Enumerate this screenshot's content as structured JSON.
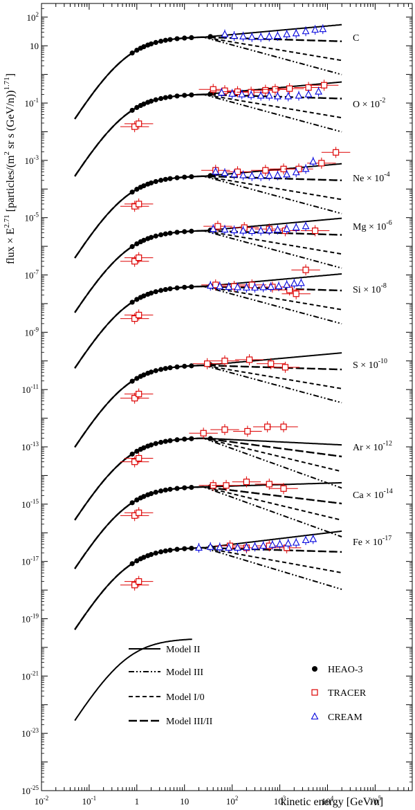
{
  "chart_data": {
    "type": "scatter",
    "title": "",
    "xlabel": "kinetic energy [GeV/n]",
    "ylabel_parts": [
      "flux × E",
      "2.71",
      " [particles/(m",
      "2",
      " sr s (GeV/n))",
      "1.71",
      "]"
    ],
    "x_scale": "log",
    "y_scale": "log",
    "xlim": [
      0.01,
      600000
    ],
    "ylim": [
      1e-25,
      300
    ],
    "x_ticks": [
      {
        "base": "10",
        "exp": "-2"
      },
      {
        "base": "10",
        "exp": "-1"
      },
      {
        "base": "1",
        "exp": ""
      },
      {
        "base": "10",
        "exp": ""
      },
      {
        "base": "10",
        "exp": "2"
      },
      {
        "base": "10",
        "exp": "3"
      },
      {
        "base": "10",
        "exp": "4"
      },
      {
        "base": "10",
        "exp": "5"
      }
    ],
    "y_ticks": [
      {
        "base": "10",
        "exp": "2"
      },
      {
        "base": "10",
        "exp": ""
      },
      {
        "base": "10",
        "exp": "-1"
      },
      {
        "base": "10",
        "exp": "-3"
      },
      {
        "base": "10",
        "exp": "-5"
      },
      {
        "base": "10",
        "exp": "-7"
      },
      {
        "base": "10",
        "exp": "-9"
      },
      {
        "base": "10",
        "exp": "-11"
      },
      {
        "base": "10",
        "exp": "-13"
      },
      {
        "base": "10",
        "exp": "-15"
      },
      {
        "base": "10",
        "exp": "-17"
      },
      {
        "base": "10",
        "exp": "-19"
      },
      {
        "base": "10",
        "exp": "-21"
      },
      {
        "base": "10",
        "exp": "-23"
      },
      {
        "base": "10",
        "exp": "-25"
      }
    ],
    "elements": [
      {
        "label": "C",
        "scale_exp": "",
        "peak": 20,
        "trend": {
          "II": 0.15,
          "III": -0.45,
          "I0": -0.28,
          "IIIII": -0.05
        },
        "tracer": [],
        "cream": [
          [
            70,
            25
          ],
          [
            110,
            22
          ],
          [
            170,
            21
          ],
          [
            260,
            20
          ],
          [
            400,
            20
          ],
          [
            600,
            21
          ],
          [
            900,
            22
          ],
          [
            1400,
            25
          ],
          [
            2200,
            27
          ],
          [
            3500,
            32
          ],
          [
            5500,
            36
          ],
          [
            8000,
            38
          ]
        ]
      },
      {
        "label": "O",
        "scale_exp": "-2",
        "peak": 0.2,
        "trend": {
          "II": 0.15,
          "III": -0.45,
          "I0": -0.28,
          "IIIII": -0.05
        },
        "tracer": [
          [
            0.9,
            0.015
          ],
          [
            1.1,
            0.019
          ],
          [
            40,
            0.3
          ],
          [
            70,
            0.27
          ],
          [
            130,
            0.25
          ],
          [
            250,
            0.24
          ],
          [
            500,
            0.28
          ],
          [
            800,
            0.3
          ],
          [
            1600,
            0.32
          ],
          [
            4000,
            0.35
          ],
          [
            8500,
            0.42
          ]
        ],
        "cream": [
          [
            60,
            0.23
          ],
          [
            100,
            0.21
          ],
          [
            160,
            0.2
          ],
          [
            250,
            0.19
          ],
          [
            400,
            0.18
          ],
          [
            600,
            0.18
          ],
          [
            900,
            0.17
          ],
          [
            1500,
            0.17
          ],
          [
            2500,
            0.18
          ],
          [
            4000,
            0.2
          ],
          [
            6500,
            0.25
          ]
        ]
      },
      {
        "label": "Ne",
        "scale_exp": "-4",
        "peak": 0.00028,
        "trend": {
          "II": 0.15,
          "III": -0.45,
          "I0": -0.28,
          "IIIII": -0.05
        },
        "tracer": [
          [
            0.9,
            2.5e-05
          ],
          [
            1.1,
            3e-05
          ],
          [
            45,
            0.00045
          ],
          [
            130,
            0.0004
          ],
          [
            500,
            0.00045
          ],
          [
            1200,
            0.0005
          ],
          [
            2500,
            0.0005
          ],
          [
            7500,
            0.0008
          ],
          [
            15000,
            0.0019
          ]
        ],
        "cream": [
          [
            45,
            0.0004
          ],
          [
            70,
            0.00036
          ],
          [
            110,
            0.00032
          ],
          [
            170,
            0.0003
          ],
          [
            260,
            0.00028
          ],
          [
            400,
            0.00028
          ],
          [
            600,
            0.00029
          ],
          [
            900,
            0.0003
          ],
          [
            1400,
            0.00032
          ],
          [
            2200,
            0.00038
          ],
          [
            3500,
            0.0005
          ],
          [
            5000,
            0.0009
          ]
        ]
      },
      {
        "label": "Mg",
        "scale_exp": "-6",
        "peak": 3.5e-06,
        "trend": {
          "II": 0.15,
          "III": -0.45,
          "I0": -0.28,
          "IIIII": -0.05
        },
        "tracer": [
          [
            0.9,
            3e-07
          ],
          [
            1.1,
            4e-07
          ],
          [
            50,
            5e-06
          ],
          [
            180,
            4.5e-06
          ],
          [
            600,
            4e-06
          ],
          [
            1300,
            3.5e-06
          ],
          [
            3500,
            1.5e-07
          ],
          [
            5500,
            3.5e-06
          ]
        ],
        "cream": [
          [
            40,
            4e-06
          ],
          [
            70,
            3.8e-06
          ],
          [
            110,
            3.6e-06
          ],
          [
            170,
            3.5e-06
          ],
          [
            260,
            3.4e-06
          ],
          [
            400,
            3.5e-06
          ],
          [
            600,
            3.6e-06
          ],
          [
            900,
            3.8e-06
          ],
          [
            1400,
            4e-06
          ],
          [
            2200,
            4.5e-06
          ],
          [
            3500,
            5e-06
          ]
        ]
      },
      {
        "label": "Si",
        "scale_exp": "-8",
        "peak": 4e-08,
        "trend": {
          "II": 0.15,
          "III": -0.45,
          "I0": -0.28,
          "IIIII": -0.05
        },
        "tracer": [
          [
            0.9,
            3e-09
          ],
          [
            1.1,
            4e-09
          ],
          [
            45,
            4.5e-08
          ],
          [
            110,
            4e-08
          ],
          [
            260,
            4.5e-08
          ],
          [
            700,
            3.8e-08
          ],
          [
            1600,
            3e-08
          ],
          [
            2200,
            2.2e-08
          ]
        ],
        "cream": [
          [
            35,
            4.2e-08
          ],
          [
            55,
            4e-08
          ],
          [
            85,
            3.8e-08
          ],
          [
            130,
            3.7e-08
          ],
          [
            200,
            3.6e-08
          ],
          [
            300,
            3.6e-08
          ],
          [
            450,
            3.7e-08
          ],
          [
            650,
            3.8e-08
          ],
          [
            950,
            4e-08
          ],
          [
            1400,
            4.5e-08
          ],
          [
            2000,
            5e-08
          ],
          [
            2800,
            5.2e-08
          ]
        ]
      },
      {
        "label": "S",
        "scale_exp": "-10",
        "peak": 7e-11,
        "trend": {
          "II": 0.15,
          "III": -0.45,
          "I0": -0.28,
          "IIIII": -0.05
        },
        "tracer": [
          [
            0.9,
            5e-12
          ],
          [
            1.1,
            7e-12
          ],
          [
            30,
            8e-11
          ],
          [
            70,
            1e-10
          ],
          [
            230,
            1.1e-10
          ],
          [
            650,
            8e-11
          ],
          [
            1300,
            6e-11
          ]
        ],
        "cream": []
      },
      {
        "label": "Ar",
        "scale_exp": "-12",
        "peak": 2e-13,
        "trend": {
          "II": -0.08,
          "III": -0.6,
          "I0": -0.4,
          "IIIII": -0.22
        },
        "tracer": [
          [
            0.9,
            3e-14
          ],
          [
            1.1,
            4e-14
          ],
          [
            25,
            3e-13
          ],
          [
            70,
            4e-13
          ],
          [
            210,
            3.5e-13
          ],
          [
            550,
            5e-13
          ],
          [
            1200,
            5e-13
          ]
        ],
        "cream": []
      },
      {
        "label": "Ca",
        "scale_exp": "-14",
        "peak": 4e-15,
        "trend": {
          "II": 0.05,
          "III": -0.6,
          "I0": -0.4,
          "IIIII": -0.2
        },
        "tracer": [
          [
            0.9,
            4e-16
          ],
          [
            1.1,
            5e-16
          ],
          [
            40,
            4.5e-15
          ],
          [
            75,
            4.5e-15
          ],
          [
            200,
            6e-15
          ],
          [
            600,
            5e-15
          ],
          [
            1200,
            3.5e-15
          ]
        ],
        "cream": []
      },
      {
        "label": "Fe",
        "scale_exp": "-17",
        "peak": 3e-17,
        "trend": {
          "II": 0.2,
          "III": -0.5,
          "I0": -0.3,
          "IIIII": -0.05
        },
        "tracer": [
          [
            0.9,
            1.5e-18
          ],
          [
            1.1,
            2e-18
          ],
          [
            90,
            3.5e-17
          ],
          [
            200,
            3e-17
          ],
          [
            600,
            3.5e-17
          ],
          [
            1400,
            3e-17
          ]
        ],
        "cream": [
          [
            20,
            3e-17
          ],
          [
            35,
            3.2e-17
          ],
          [
            55,
            3.1e-17
          ],
          [
            85,
            3e-17
          ],
          [
            130,
            3e-17
          ],
          [
            200,
            3.1e-17
          ],
          [
            300,
            3.3e-17
          ],
          [
            450,
            3.5e-17
          ],
          [
            700,
            3.8e-17
          ],
          [
            1000,
            4e-17
          ],
          [
            1500,
            4.2e-17
          ],
          [
            2200,
            4.5e-17
          ],
          [
            3500,
            5.5e-17
          ],
          [
            5000,
            6e-17
          ]
        ]
      }
    ],
    "extra_curve": {
      "peak": 2e-20,
      "ends_at": 15
    },
    "legend": {
      "models": [
        {
          "key": "II",
          "label": "Model II"
        },
        {
          "key": "III",
          "label": "Model III"
        },
        {
          "key": "I0",
          "label": "Model I/0"
        },
        {
          "key": "IIIII",
          "label": "Model III/II"
        }
      ],
      "data": [
        {
          "key": "heao",
          "label": "HEAO-3",
          "color": "#000000"
        },
        {
          "key": "tracer",
          "label": "TRACER",
          "color": "#dd0000"
        },
        {
          "key": "cream",
          "label": "CREAM",
          "color": "#0000dd"
        }
      ]
    }
  }
}
